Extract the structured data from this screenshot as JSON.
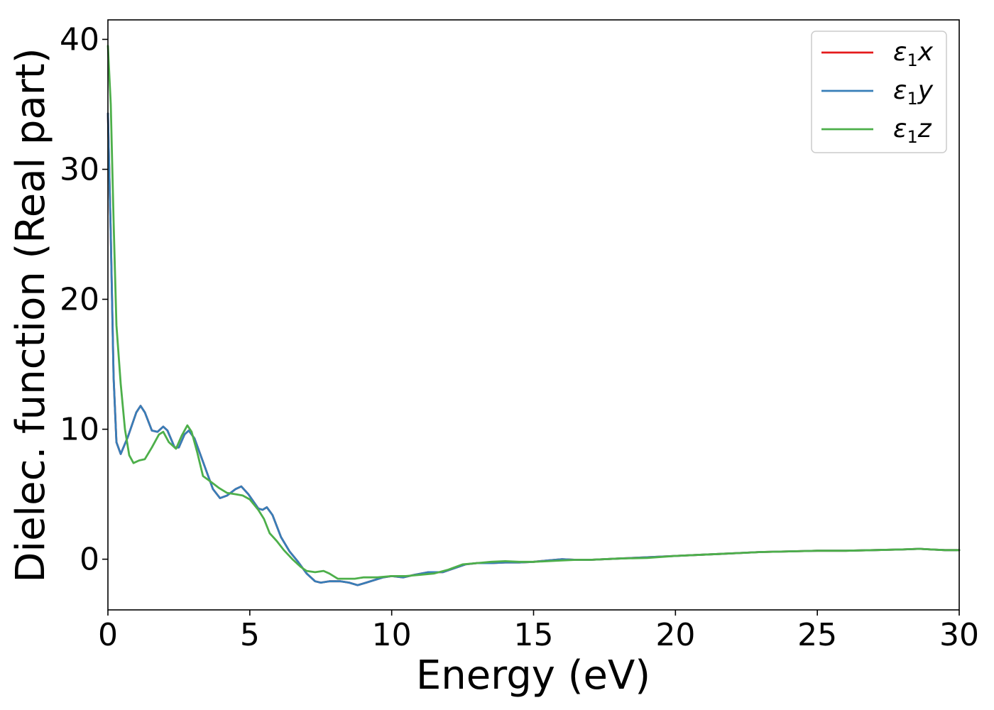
{
  "chart_data": {
    "type": "line",
    "xlabel": "Energy (eV)",
    "ylabel": "Dielec. function (Real part)",
    "xlim": [
      0,
      30
    ],
    "ylim": [
      -3.9,
      41.5
    ],
    "xticks": [
      "0",
      "5",
      "10",
      "15",
      "20",
      "25",
      "30"
    ],
    "yticks": [
      "0",
      "10",
      "20",
      "30",
      "40"
    ],
    "grid": false,
    "legend_position": "top-right",
    "series": [
      {
        "name": "ε1x",
        "color": "#e41a1c",
        "points": [
          [
            0,
            34.3
          ],
          [
            0.1,
            25
          ],
          [
            0.2,
            14
          ],
          [
            0.3,
            9
          ],
          [
            0.45,
            8.1
          ],
          [
            0.7,
            9.4
          ],
          [
            1.0,
            11.3
          ],
          [
            1.15,
            11.8
          ],
          [
            1.3,
            11.3
          ],
          [
            1.55,
            9.9
          ],
          [
            1.75,
            9.8
          ],
          [
            1.95,
            10.2
          ],
          [
            2.1,
            9.9
          ],
          [
            2.35,
            8.6
          ],
          [
            2.5,
            8.6
          ],
          [
            2.7,
            9.6
          ],
          [
            2.85,
            9.9
          ],
          [
            3.05,
            9.3
          ],
          [
            3.35,
            7.5
          ],
          [
            3.7,
            5.4
          ],
          [
            3.95,
            4.7
          ],
          [
            4.2,
            4.9
          ],
          [
            4.5,
            5.4
          ],
          [
            4.7,
            5.6
          ],
          [
            4.95,
            5.0
          ],
          [
            5.3,
            3.9
          ],
          [
            5.45,
            3.8
          ],
          [
            5.6,
            4.0
          ],
          [
            5.8,
            3.4
          ],
          [
            6.1,
            1.7
          ],
          [
            6.4,
            0.6
          ],
          [
            6.7,
            -0.2
          ],
          [
            7.0,
            -1.1
          ],
          [
            7.3,
            -1.7
          ],
          [
            7.5,
            -1.8
          ],
          [
            7.8,
            -1.7
          ],
          [
            8.2,
            -1.7
          ],
          [
            8.5,
            -1.8
          ],
          [
            8.8,
            -2.0
          ],
          [
            9.1,
            -1.8
          ],
          [
            9.4,
            -1.6
          ],
          [
            9.7,
            -1.4
          ],
          [
            10.0,
            -1.3
          ],
          [
            10.4,
            -1.4
          ],
          [
            10.8,
            -1.2
          ],
          [
            11.3,
            -1.0
          ],
          [
            11.8,
            -1.0
          ],
          [
            12.2,
            -0.7
          ],
          [
            12.6,
            -0.4
          ],
          [
            13.0,
            -0.3
          ],
          [
            13.5,
            -0.3
          ],
          [
            14.0,
            -0.25
          ],
          [
            14.5,
            -0.25
          ],
          [
            15.0,
            -0.2
          ],
          [
            15.5,
            -0.1
          ],
          [
            16.0,
            0.0
          ],
          [
            16.5,
            -0.05
          ],
          [
            17.0,
            -0.05
          ],
          [
            18.0,
            0.05
          ],
          [
            19.0,
            0.15
          ],
          [
            20.0,
            0.25
          ],
          [
            21.0,
            0.35
          ],
          [
            22.0,
            0.45
          ],
          [
            23.0,
            0.55
          ],
          [
            24.0,
            0.6
          ],
          [
            25.0,
            0.65
          ],
          [
            26.0,
            0.65
          ],
          [
            27.0,
            0.7
          ],
          [
            28.0,
            0.75
          ],
          [
            28.6,
            0.8
          ],
          [
            29.0,
            0.75
          ],
          [
            29.5,
            0.7
          ],
          [
            30.0,
            0.7
          ]
        ]
      },
      {
        "name": "ε1y",
        "color": "#377eb8",
        "points": [
          [
            0,
            34.3
          ],
          [
            0.1,
            25
          ],
          [
            0.2,
            14
          ],
          [
            0.3,
            9
          ],
          [
            0.45,
            8.1
          ],
          [
            0.7,
            9.4
          ],
          [
            1.0,
            11.3
          ],
          [
            1.15,
            11.8
          ],
          [
            1.3,
            11.3
          ],
          [
            1.55,
            9.9
          ],
          [
            1.75,
            9.8
          ],
          [
            1.95,
            10.2
          ],
          [
            2.1,
            9.9
          ],
          [
            2.35,
            8.6
          ],
          [
            2.5,
            8.6
          ],
          [
            2.7,
            9.6
          ],
          [
            2.85,
            9.9
          ],
          [
            3.05,
            9.3
          ],
          [
            3.35,
            7.5
          ],
          [
            3.7,
            5.4
          ],
          [
            3.95,
            4.7
          ],
          [
            4.2,
            4.9
          ],
          [
            4.5,
            5.4
          ],
          [
            4.7,
            5.6
          ],
          [
            4.95,
            5.0
          ],
          [
            5.3,
            3.9
          ],
          [
            5.45,
            3.8
          ],
          [
            5.6,
            4.0
          ],
          [
            5.8,
            3.4
          ],
          [
            6.1,
            1.7
          ],
          [
            6.4,
            0.6
          ],
          [
            6.7,
            -0.2
          ],
          [
            7.0,
            -1.1
          ],
          [
            7.3,
            -1.7
          ],
          [
            7.5,
            -1.8
          ],
          [
            7.8,
            -1.7
          ],
          [
            8.2,
            -1.7
          ],
          [
            8.5,
            -1.8
          ],
          [
            8.8,
            -2.0
          ],
          [
            9.1,
            -1.8
          ],
          [
            9.4,
            -1.6
          ],
          [
            9.7,
            -1.4
          ],
          [
            10.0,
            -1.3
          ],
          [
            10.4,
            -1.4
          ],
          [
            10.8,
            -1.2
          ],
          [
            11.3,
            -1.0
          ],
          [
            11.8,
            -1.0
          ],
          [
            12.2,
            -0.7
          ],
          [
            12.6,
            -0.4
          ],
          [
            13.0,
            -0.3
          ],
          [
            13.5,
            -0.3
          ],
          [
            14.0,
            -0.25
          ],
          [
            14.5,
            -0.25
          ],
          [
            15.0,
            -0.2
          ],
          [
            15.5,
            -0.1
          ],
          [
            16.0,
            0.0
          ],
          [
            16.5,
            -0.05
          ],
          [
            17.0,
            -0.05
          ],
          [
            18.0,
            0.05
          ],
          [
            19.0,
            0.15
          ],
          [
            20.0,
            0.25
          ],
          [
            21.0,
            0.35
          ],
          [
            22.0,
            0.45
          ],
          [
            23.0,
            0.55
          ],
          [
            24.0,
            0.6
          ],
          [
            25.0,
            0.65
          ],
          [
            26.0,
            0.65
          ],
          [
            27.0,
            0.7
          ],
          [
            28.0,
            0.75
          ],
          [
            28.6,
            0.8
          ],
          [
            29.0,
            0.75
          ],
          [
            29.5,
            0.7
          ],
          [
            30.0,
            0.7
          ]
        ]
      },
      {
        "name": "ε1z",
        "color": "#4daf4a",
        "points": [
          [
            0,
            39.5
          ],
          [
            0.1,
            35
          ],
          [
            0.2,
            26
          ],
          [
            0.3,
            18
          ],
          [
            0.45,
            13.5
          ],
          [
            0.6,
            10.0
          ],
          [
            0.75,
            8.0
          ],
          [
            0.9,
            7.4
          ],
          [
            1.1,
            7.6
          ],
          [
            1.3,
            7.7
          ],
          [
            1.55,
            8.6
          ],
          [
            1.8,
            9.6
          ],
          [
            1.95,
            9.8
          ],
          [
            2.15,
            9.0
          ],
          [
            2.4,
            8.5
          ],
          [
            2.6,
            9.5
          ],
          [
            2.8,
            10.3
          ],
          [
            2.95,
            9.8
          ],
          [
            3.15,
            8.2
          ],
          [
            3.35,
            6.4
          ],
          [
            3.6,
            6.0
          ],
          [
            3.9,
            5.5
          ],
          [
            4.2,
            5.1
          ],
          [
            4.5,
            5.0
          ],
          [
            4.75,
            4.9
          ],
          [
            5.0,
            4.6
          ],
          [
            5.3,
            3.8
          ],
          [
            5.5,
            3.1
          ],
          [
            5.7,
            2.0
          ],
          [
            5.95,
            1.4
          ],
          [
            6.2,
            0.7
          ],
          [
            6.5,
            0.0
          ],
          [
            6.8,
            -0.6
          ],
          [
            7.0,
            -0.9
          ],
          [
            7.3,
            -1.0
          ],
          [
            7.6,
            -0.9
          ],
          [
            7.8,
            -1.1
          ],
          [
            8.1,
            -1.5
          ],
          [
            8.4,
            -1.5
          ],
          [
            8.7,
            -1.5
          ],
          [
            9.0,
            -1.4
          ],
          [
            9.5,
            -1.4
          ],
          [
            10.0,
            -1.3
          ],
          [
            10.5,
            -1.3
          ],
          [
            11.0,
            -1.2
          ],
          [
            11.5,
            -1.1
          ],
          [
            12.0,
            -0.8
          ],
          [
            12.5,
            -0.4
          ],
          [
            13.0,
            -0.3
          ],
          [
            13.5,
            -0.2
          ],
          [
            14.0,
            -0.15
          ],
          [
            14.5,
            -0.2
          ],
          [
            15.0,
            -0.2
          ],
          [
            15.5,
            -0.15
          ],
          [
            16.0,
            -0.1
          ],
          [
            16.5,
            -0.05
          ],
          [
            17.0,
            -0.05
          ],
          [
            18.0,
            0.05
          ],
          [
            19.0,
            0.1
          ],
          [
            20.0,
            0.25
          ],
          [
            21.0,
            0.35
          ],
          [
            22.0,
            0.45
          ],
          [
            23.0,
            0.55
          ],
          [
            24.0,
            0.6
          ],
          [
            25.0,
            0.65
          ],
          [
            26.0,
            0.65
          ],
          [
            27.0,
            0.7
          ],
          [
            28.0,
            0.75
          ],
          [
            28.6,
            0.8
          ],
          [
            29.0,
            0.75
          ],
          [
            29.5,
            0.7
          ],
          [
            30.0,
            0.7
          ]
        ]
      }
    ]
  }
}
